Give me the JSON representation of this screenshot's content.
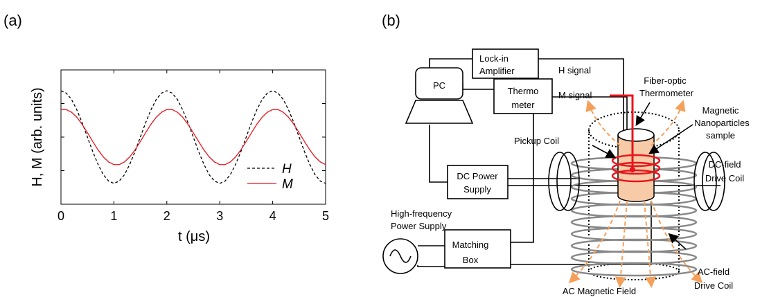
{
  "chart_data": {
    "type": "line",
    "panel_label": "(a)",
    "x_label": "t (μs)",
    "y_label": "H, M (arb. units)",
    "x": [
      0,
      0.1,
      0.2,
      0.3,
      0.4,
      0.5,
      0.6,
      0.7,
      0.8,
      0.9,
      1,
      1.1,
      1.2,
      1.3,
      1.4,
      1.5,
      1.6,
      1.7,
      1.8,
      1.9,
      2,
      2.1,
      2.2,
      2.3,
      2.4,
      2.5,
      2.6,
      2.7,
      2.8,
      2.9,
      3,
      3.1,
      3.2,
      3.3,
      3.4,
      3.5,
      3.6,
      3.7,
      3.8,
      3.9,
      4,
      4.1,
      4.2,
      4.3,
      4.4,
      4.5,
      4.6,
      4.7,
      4.8,
      4.9,
      5
    ],
    "series": [
      {
        "name": "H",
        "color": "#000000",
        "dash": true,
        "values": [
          1.38,
          1.31,
          1.12,
          0.81,
          0.43,
          0,
          -0.43,
          -0.81,
          -1.12,
          -1.31,
          -1.38,
          -1.31,
          -1.12,
          -0.81,
          -0.43,
          0,
          0.43,
          0.81,
          1.12,
          1.31,
          1.38,
          1.31,
          1.12,
          0.81,
          0.43,
          0,
          -0.43,
          -0.81,
          -1.12,
          -1.31,
          -1.38,
          -1.31,
          -1.12,
          -0.81,
          -0.43,
          0,
          0.43,
          0.81,
          1.12,
          1.31,
          1.38,
          1.31,
          1.12,
          0.81,
          0.43,
          0,
          -0.43,
          -0.81,
          -1.12,
          -1.31,
          -1.38
        ]
      },
      {
        "name": "M",
        "color": "#e8141c",
        "dash": false,
        "values": [
          0.82,
          0.82,
          0.74,
          0.59,
          0.38,
          0.13,
          -0.13,
          -0.38,
          -0.59,
          -0.74,
          -0.82,
          -0.82,
          -0.74,
          -0.59,
          -0.38,
          -0.13,
          0.13,
          0.38,
          0.59,
          0.74,
          0.82,
          0.82,
          0.74,
          0.59,
          0.38,
          0.13,
          -0.13,
          -0.38,
          -0.59,
          -0.74,
          -0.82,
          -0.82,
          -0.74,
          -0.59,
          -0.38,
          -0.13,
          0.13,
          0.38,
          0.59,
          0.74,
          0.82,
          0.82,
          0.74,
          0.59,
          0.38,
          0.13,
          -0.13,
          -0.38,
          -0.59,
          -0.74,
          -0.82
        ]
      }
    ],
    "xlim": [
      0,
      5
    ],
    "xticks": [
      0,
      1,
      2,
      3,
      4,
      5
    ],
    "ylim": [
      -2,
      2
    ],
    "yticks": [
      -1,
      0,
      1
    ],
    "legend_loc": "lower right"
  },
  "diagram": {
    "label": "(b)",
    "lock_in": [
      "Lock-in",
      "Amplifier"
    ],
    "h_signal": "H signal",
    "m_signal": "M signal",
    "pc": "PC",
    "thermometer": [
      "Thermo",
      "meter"
    ],
    "fiber_optic": [
      "Fiber-optic",
      "Thermometer"
    ],
    "sample": [
      "Magnetic",
      "Nanoparticles",
      "sample"
    ],
    "pickup_coil": "Pickup Coil",
    "dc_coil": [
      "DC-field",
      "Drive Coil"
    ],
    "dc_supply": [
      "DC  Power",
      "Supply"
    ],
    "hf_supply": [
      "High-frequency",
      "Power Supply"
    ],
    "matching_box": [
      "Matching",
      "Box"
    ],
    "ac_coil": [
      "AC-field",
      "Drive Coil"
    ],
    "ac_field": "AC Magnetic Field"
  }
}
